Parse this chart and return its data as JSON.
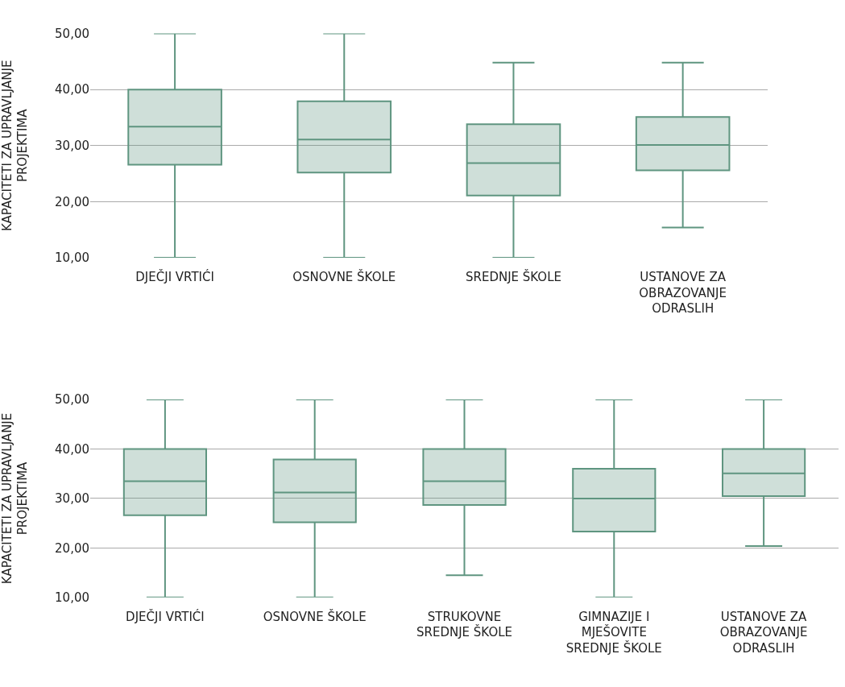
{
  "chart_data": [
    {
      "type": "box",
      "ylabel": "KAPACITETI ZA UPRAVLJANJE PROJEKTIMA",
      "categories": [
        "DJEČJI VRTIĆI",
        "OSNOVNE ŠKOLE",
        "SREDNJE ŠKOLE",
        "USTANOVE ZA OBRAZOVANJE ODRASLIH"
      ],
      "boxes": [
        {
          "low": 10,
          "q1": 26.6,
          "median": 33.4,
          "q3": 40,
          "high": 50
        },
        {
          "low": 10,
          "q1": 25.2,
          "median": 31.1,
          "q3": 37.9,
          "high": 50
        },
        {
          "low": 10,
          "q1": 21.1,
          "median": 26.9,
          "q3": 33.8,
          "high": 44.8
        },
        {
          "low": 15.4,
          "q1": 25.6,
          "median": 30.1,
          "q3": 35.1,
          "high": 44.8
        }
      ],
      "color": "#5f9580",
      "ylim": [
        10,
        50
      ],
      "yticks": [
        {
          "value": 10,
          "label": "10,00"
        },
        {
          "value": 20,
          "label": "20,00"
        },
        {
          "value": 30,
          "label": "30,00"
        },
        {
          "value": 40,
          "label": "40,00"
        },
        {
          "value": 50,
          "label": "50,00"
        }
      ],
      "grid": "y"
    },
    {
      "type": "box",
      "ylabel": "KAPACITETI ZA UPRAVLJANJE PROJEKTIMA",
      "categories": [
        "DJEČJI VRTIĆI",
        "OSNOVNE ŠKOLE",
        "STRUKOVNE SREDNJE ŠKOLE",
        "GIMNAZIJE I MJEŠOVITE SREDNJE ŠKOLE",
        "USTANOVE ZA OBRAZOVANJE ODRASLIH"
      ],
      "boxes": [
        {
          "low": 10,
          "q1": 26.6,
          "median": 33.5,
          "q3": 40,
          "high": 50
        },
        {
          "low": 10,
          "q1": 25.2,
          "median": 31.2,
          "q3": 37.9,
          "high": 50
        },
        {
          "low": 14.5,
          "q1": 28.7,
          "median": 33.5,
          "q3": 40,
          "high": 50
        },
        {
          "low": 10,
          "q1": 23.3,
          "median": 30,
          "q3": 36,
          "high": 50
        },
        {
          "low": 20.4,
          "q1": 30.5,
          "median": 35.1,
          "q3": 40,
          "high": 50
        }
      ],
      "color": "#5f9580",
      "ylim": [
        10,
        50
      ],
      "yticks": [
        {
          "value": 10,
          "label": "10,00"
        },
        {
          "value": 20,
          "label": "20,00"
        },
        {
          "value": 30,
          "label": "30,00"
        },
        {
          "value": 40,
          "label": "40,00"
        },
        {
          "value": 50,
          "label": "50,00"
        }
      ],
      "grid": "y"
    }
  ]
}
